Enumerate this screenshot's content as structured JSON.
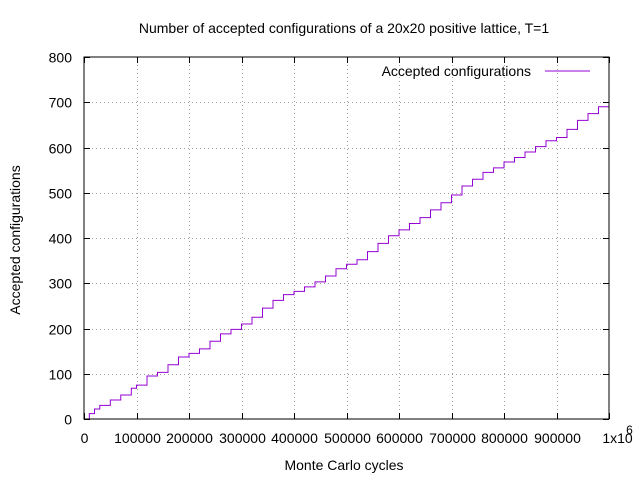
{
  "chart_data": {
    "type": "line",
    "title": "Number of accepted configurations of a 20x20 positive lattice, T=1",
    "xlabel": "Monte Carlo cycles",
    "ylabel": "Accepted configurations",
    "xlim": [
      0,
      1000000
    ],
    "ylim": [
      0,
      800
    ],
    "x_ticks": [
      0,
      100000,
      200000,
      300000,
      400000,
      500000,
      600000,
      700000,
      800000,
      900000,
      1000000
    ],
    "x_tick_labels": [
      "0",
      "100000",
      "200000",
      "300000",
      "400000",
      "500000",
      "600000",
      "700000",
      "800000",
      "900000",
      "1x10"
    ],
    "x_tick_exponent": "6",
    "y_ticks": [
      0,
      100,
      200,
      300,
      400,
      500,
      600,
      700,
      800
    ],
    "y_tick_labels": [
      "0",
      "100",
      "200",
      "300",
      "400",
      "500",
      "600",
      "700",
      "800"
    ],
    "grid": true,
    "legend_position": "top-right",
    "series": [
      {
        "name": "Accepted configurations",
        "color": "#9400d3",
        "x": [
          0,
          10000,
          20000,
          30000,
          50000,
          70000,
          90000,
          100000,
          120000,
          140000,
          160000,
          180000,
          200000,
          220000,
          240000,
          260000,
          280000,
          300000,
          320000,
          340000,
          360000,
          380000,
          400000,
          420000,
          440000,
          460000,
          480000,
          500000,
          520000,
          540000,
          560000,
          580000,
          600000,
          620000,
          640000,
          660000,
          680000,
          700000,
          720000,
          740000,
          760000,
          780000,
          800000,
          820000,
          840000,
          860000,
          880000,
          900000,
          920000,
          940000,
          960000,
          980000,
          1000000
        ],
        "values": [
          0,
          12,
          22,
          30,
          42,
          53,
          68,
          75,
          95,
          103,
          120,
          137,
          145,
          155,
          172,
          188,
          198,
          210,
          225,
          245,
          262,
          275,
          282,
          292,
          303,
          316,
          332,
          342,
          352,
          370,
          388,
          405,
          418,
          432,
          445,
          462,
          478,
          495,
          515,
          530,
          545,
          555,
          568,
          578,
          590,
          602,
          615,
          622,
          640,
          660,
          675,
          690,
          710
        ]
      }
    ]
  }
}
